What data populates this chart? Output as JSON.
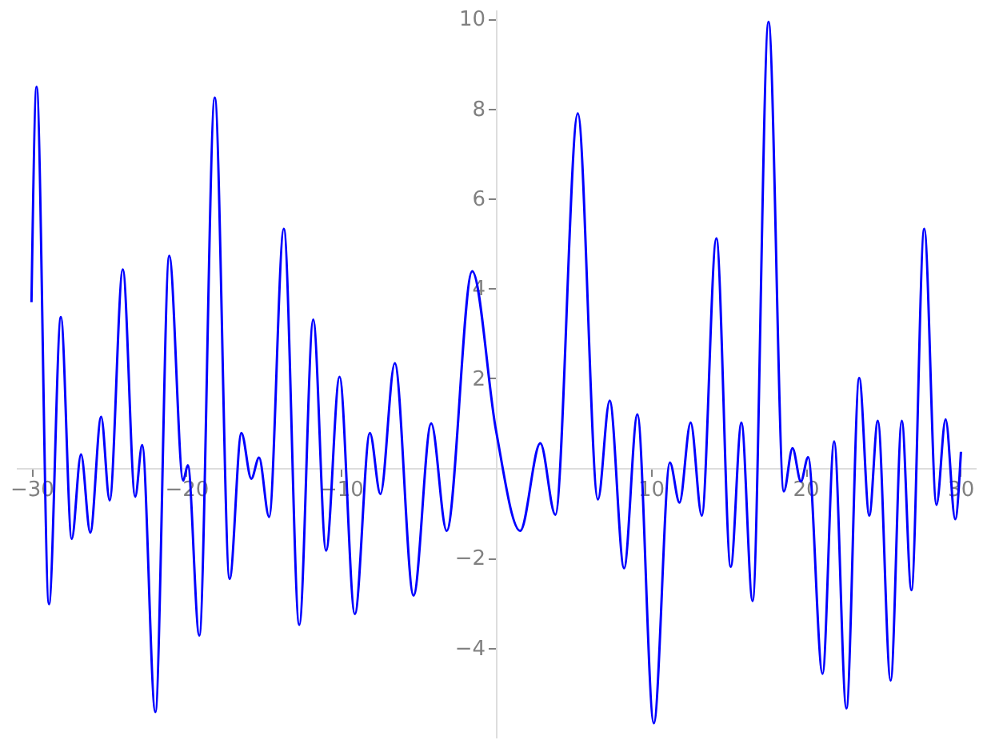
{
  "chart_data": {
    "type": "line",
    "xlim": [
      -31,
      31
    ],
    "ylim": [
      -6.0,
      10.2
    ],
    "xticks": [
      -30,
      -20,
      -10,
      10,
      20,
      30
    ],
    "yticks": [
      -4,
      -2,
      2,
      4,
      6,
      8,
      10
    ],
    "grid": false,
    "legend": false,
    "marker": "none",
    "line_style": "solid",
    "series": [
      {
        "color": "#0000ff",
        "x": [
          -30,
          -29.67,
          -28.87,
          -28.1,
          -27.4,
          -26.8,
          -26.2,
          -25.5,
          -24.95,
          -24.1,
          -23.3,
          -22.85,
          -22.0,
          -21.1,
          -20.2,
          -19.9,
          -19.16,
          -18.16,
          -17.2,
          -16.44,
          -15.8,
          -15.3,
          -14.65,
          -13.7,
          -12.7,
          -11.8,
          -10.97,
          -10.1,
          -9.11,
          -8.14,
          -7.46,
          -6.53,
          -5.32,
          -4.18,
          -3.18,
          -1.53,
          0,
          1.57,
          2.87,
          3.84,
          5.29,
          6.59,
          7.35,
          8.28,
          9.14,
          10.2,
          11.24,
          11.86,
          12.58,
          13.3,
          14.24,
          15.17,
          15.86,
          16.58,
          17.61,
          18.6,
          19.16,
          19.7,
          20.17,
          21.1,
          21.85,
          22.64,
          23.47,
          24.12,
          24.67,
          25.5,
          26.22,
          26.84,
          27.67,
          28.46,
          29.05,
          29.67,
          30.04
        ],
        "values": [
          3.69,
          8.48,
          -3.03,
          3.36,
          -1.58,
          0.3,
          -1.44,
          1.14,
          -0.72,
          4.42,
          -0.64,
          0.51,
          -5.43,
          4.72,
          -0.28,
          0.06,
          -3.73,
          8.24,
          -2.47,
          0.78,
          -0.24,
          0.23,
          -1.09,
          5.32,
          -3.49,
          3.3,
          -1.84,
          2.03,
          -3.25,
          0.78,
          -0.58,
          2.33,
          -2.84,
          0.99,
          -1.4,
          4.38,
          0.85,
          -1.4,
          0.55,
          -1.04,
          7.89,
          -0.7,
          1.5,
          -2.23,
          1.19,
          -5.68,
          0.12,
          -0.77,
          1.01,
          -1.06,
          5.11,
          -2.2,
          1.01,
          -2.96,
          9.93,
          -0.52,
          0.44,
          -0.3,
          0.24,
          -4.58,
          0.59,
          -5.35,
          2.0,
          -1.06,
          1.05,
          -4.73,
          1.05,
          -2.72,
          5.32,
          -0.82,
          1.08,
          -1.14,
          0.36
        ]
      }
    ]
  }
}
